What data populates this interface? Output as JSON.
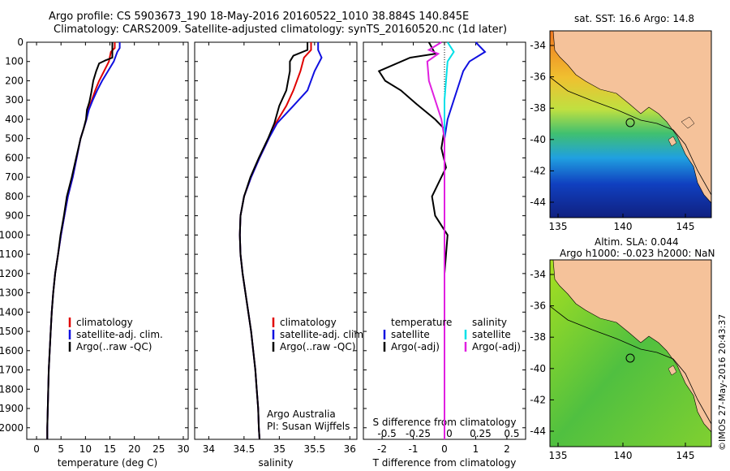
{
  "figure": {
    "title_line1": "Argo profile: CS 5903673_190 18-May-2016 20160522_1010 38.884S 140.845E",
    "title_line2": "Climatology: CARS2009. Satellite-adjusted climatology: synTS_20160520.nc (1d later)",
    "credit": "©IMOS 27-May-2016 20:43:37"
  },
  "colors": {
    "climatology": "#e00000",
    "satellite": "#1010e0",
    "argo": "#000000",
    "sal_satellite": "#00e0e8",
    "sal_argo": "#e020e0",
    "land": "#f5c29a"
  },
  "chart_data": [
    {
      "type": "line",
      "id": "temperature",
      "xlabel": "temperature (deg C)",
      "ylabel": "",
      "xlim": [
        -2,
        31
      ],
      "ylim": [
        0,
        2060
      ],
      "x_ticks": [
        0,
        5,
        10,
        15,
        20,
        25,
        30
      ],
      "y_ticks": [
        0,
        100,
        200,
        300,
        400,
        500,
        600,
        700,
        800,
        900,
        1000,
        1100,
        1200,
        1300,
        1400,
        1500,
        1600,
        1700,
        1800,
        1900,
        2000
      ],
      "y_reversed": true,
      "legend": [
        "climatology",
        "satellite-adj. clim.",
        "Argo(..raw -QC)"
      ],
      "series": [
        {
          "name": "climatology",
          "color": "#e00000",
          "points": [
            [
              16,
              0
            ],
            [
              16,
              30
            ],
            [
              15.2,
              50
            ],
            [
              14.8,
              100
            ],
            [
              13.8,
              150
            ],
            [
              12.8,
              200
            ],
            [
              12,
              250
            ],
            [
              11.3,
              300
            ],
            [
              10.6,
              350
            ],
            [
              10.2,
              400
            ],
            [
              9.6,
              450
            ],
            [
              9,
              500
            ],
            [
              8.2,
              600
            ],
            [
              7.4,
              700
            ],
            [
              6.4,
              800
            ],
            [
              5.7,
              900
            ],
            [
              5,
              1000
            ],
            [
              4.4,
              1100
            ],
            [
              3.8,
              1200
            ],
            [
              3.4,
              1300
            ],
            [
              3.1,
              1400
            ],
            [
              2.9,
              1500
            ],
            [
              2.7,
              1600
            ],
            [
              2.5,
              1700
            ],
            [
              2.4,
              1800
            ],
            [
              2.3,
              1900
            ],
            [
              2.2,
              2000
            ],
            [
              2.2,
              2060
            ]
          ]
        },
        {
          "name": "satellite-adj. clim.",
          "color": "#1010e0",
          "points": [
            [
              17,
              0
            ],
            [
              17,
              30
            ],
            [
              16.5,
              50
            ],
            [
              15.8,
              100
            ],
            [
              14.6,
              150
            ],
            [
              13.4,
              200
            ],
            [
              12.4,
              250
            ],
            [
              11.5,
              300
            ],
            [
              10.7,
              350
            ],
            [
              10.2,
              400
            ],
            [
              9.6,
              450
            ],
            [
              9,
              500
            ],
            [
              8.2,
              600
            ],
            [
              7.4,
              700
            ],
            [
              6.4,
              800
            ],
            [
              5.7,
              900
            ],
            [
              5,
              1000
            ],
            [
              4.4,
              1100
            ],
            [
              3.8,
              1200
            ],
            [
              3.4,
              1300
            ],
            [
              3.1,
              1400
            ],
            [
              2.9,
              1500
            ],
            [
              2.7,
              1600
            ],
            [
              2.5,
              1700
            ],
            [
              2.4,
              1800
            ],
            [
              2.3,
              1900
            ],
            [
              2.2,
              2000
            ],
            [
              2.2,
              2060
            ]
          ]
        },
        {
          "name": "Argo(..raw -QC)",
          "color": "#000000",
          "points": [
            [
              15.5,
              0
            ],
            [
              15.5,
              80
            ],
            [
              14,
              95
            ],
            [
              12.8,
              110
            ],
            [
              12.2,
              150
            ],
            [
              11.6,
              200
            ],
            [
              11.2,
              260
            ],
            [
              10.8,
              310
            ],
            [
              10.3,
              350
            ],
            [
              10.1,
              400
            ],
            [
              9.6,
              450
            ],
            [
              9,
              500
            ],
            [
              8.1,
              600
            ],
            [
              7.2,
              700
            ],
            [
              6.2,
              800
            ],
            [
              5.6,
              900
            ],
            [
              4.9,
              1000
            ],
            [
              4.4,
              1100
            ],
            [
              3.8,
              1200
            ],
            [
              3.4,
              1300
            ],
            [
              3.1,
              1400
            ],
            [
              2.9,
              1500
            ],
            [
              2.7,
              1600
            ],
            [
              2.5,
              1700
            ],
            [
              2.4,
              1800
            ],
            [
              2.3,
              1900
            ],
            [
              2.2,
              2000
            ],
            [
              2.2,
              2060
            ]
          ]
        }
      ]
    },
    {
      "type": "line",
      "id": "salinity",
      "xlabel": "salinity",
      "ylabel": "",
      "xlim": [
        33.8,
        36.1
      ],
      "ylim": [
        0,
        2060
      ],
      "x_ticks": [
        34,
        34.5,
        35,
        35.5,
        36
      ],
      "y_reversed": true,
      "legend": [
        "climatology",
        "satellite-adj. clim.",
        "Argo(..raw -QC)"
      ],
      "annotations": [
        "Argo Australia",
        "PI: Susan Wijffels"
      ],
      "series": [
        {
          "name": "climatology",
          "color": "#e00000",
          "points": [
            [
              35.45,
              0
            ],
            [
              35.45,
              40
            ],
            [
              35.35,
              80
            ],
            [
              35.3,
              150
            ],
            [
              35.2,
              250
            ],
            [
              35.1,
              330
            ],
            [
              34.95,
              420
            ],
            [
              34.85,
              500
            ],
            [
              34.72,
              600
            ],
            [
              34.6,
              700
            ],
            [
              34.5,
              800
            ],
            [
              34.45,
              900
            ],
            [
              34.44,
              1000
            ],
            [
              34.45,
              1100
            ],
            [
              34.48,
              1200
            ],
            [
              34.52,
              1300
            ],
            [
              34.56,
              1400
            ],
            [
              34.6,
              1500
            ],
            [
              34.63,
              1600
            ],
            [
              34.66,
              1700
            ],
            [
              34.68,
              1800
            ],
            [
              34.7,
              1900
            ],
            [
              34.71,
              2000
            ],
            [
              34.72,
              2060
            ]
          ]
        },
        {
          "name": "satellite-adj. clim.",
          "color": "#1010e0",
          "points": [
            [
              35.55,
              0
            ],
            [
              35.55,
              40
            ],
            [
              35.6,
              80
            ],
            [
              35.5,
              150
            ],
            [
              35.4,
              250
            ],
            [
              35.2,
              330
            ],
            [
              34.97,
              420
            ],
            [
              34.85,
              500
            ],
            [
              34.72,
              600
            ],
            [
              34.6,
              700
            ],
            [
              34.5,
              800
            ],
            [
              34.45,
              900
            ],
            [
              34.44,
              1000
            ],
            [
              34.45,
              1100
            ],
            [
              34.48,
              1200
            ],
            [
              34.52,
              1300
            ],
            [
              34.56,
              1400
            ],
            [
              34.6,
              1500
            ],
            [
              34.63,
              1600
            ],
            [
              34.66,
              1700
            ],
            [
              34.68,
              1800
            ],
            [
              34.7,
              1900
            ],
            [
              34.71,
              2000
            ],
            [
              34.72,
              2060
            ]
          ]
        },
        {
          "name": "Argo(..raw -QC)",
          "color": "#000000",
          "points": [
            [
              35.4,
              0
            ],
            [
              35.4,
              40
            ],
            [
              35.2,
              70
            ],
            [
              35.15,
              100
            ],
            [
              35.15,
              150
            ],
            [
              35.1,
              250
            ],
            [
              35.0,
              330
            ],
            [
              34.93,
              420
            ],
            [
              34.84,
              500
            ],
            [
              34.71,
              600
            ],
            [
              34.59,
              700
            ],
            [
              34.5,
              800
            ],
            [
              34.45,
              900
            ],
            [
              34.44,
              1000
            ],
            [
              34.45,
              1100
            ],
            [
              34.48,
              1200
            ],
            [
              34.52,
              1300
            ],
            [
              34.56,
              1400
            ],
            [
              34.6,
              1500
            ],
            [
              34.63,
              1600
            ],
            [
              34.66,
              1700
            ],
            [
              34.68,
              1800
            ],
            [
              34.7,
              1900
            ],
            [
              34.71,
              2000
            ],
            [
              34.72,
              2060
            ]
          ]
        }
      ]
    },
    {
      "type": "line",
      "id": "difference",
      "xlabel": "T difference from climatology",
      "xlabel_top": "S difference from climatology",
      "ylabel": "",
      "xlim": [
        -2.6,
        2.6
      ],
      "ylim": [
        0,
        2060
      ],
      "x_ticks": [
        -2,
        -1,
        0,
        1,
        2
      ],
      "x_ticks_top": [
        "-0.5",
        "-0.25",
        "0",
        "0.25",
        "0.5"
      ],
      "y_reversed": true,
      "legend_left": [
        "temperature",
        "satellite",
        "Argo(-adj)"
      ],
      "legend_right": [
        "salinity",
        "satellite",
        "Argo(-adj)"
      ],
      "series": [
        {
          "name": "T satellite",
          "color": "#1010e0",
          "points": [
            [
              1,
              0
            ],
            [
              1.3,
              50
            ],
            [
              0.8,
              100
            ],
            [
              0.6,
              150
            ],
            [
              0.5,
              200
            ],
            [
              0.3,
              300
            ],
            [
              0.1,
              400
            ],
            [
              0,
              500
            ],
            [
              0,
              2060
            ]
          ]
        },
        {
          "name": "T Argo(-adj)",
          "color": "#000000",
          "points": [
            [
              -0.5,
              0
            ],
            [
              -0.3,
              60
            ],
            [
              -1.1,
              80
            ],
            [
              -2.1,
              150
            ],
            [
              -1.9,
              200
            ],
            [
              -1.4,
              250
            ],
            [
              -0.9,
              320
            ],
            [
              -0.3,
              400
            ],
            [
              0,
              450
            ],
            [
              -0.1,
              550
            ],
            [
              0.05,
              650
            ],
            [
              -0.4,
              800
            ],
            [
              -0.3,
              900
            ],
            [
              0.1,
              1000
            ],
            [
              0,
              1200
            ],
            [
              0,
              2060
            ]
          ]
        },
        {
          "name": "S satellite",
          "color": "#00e0e8",
          "points": [
            [
              0.1,
              0
            ],
            [
              0.3,
              50
            ],
            [
              0.1,
              100
            ],
            [
              0.05,
              200
            ],
            [
              0,
              300
            ],
            [
              0,
              2060
            ]
          ]
        },
        {
          "name": "S Argo(-adj)",
          "color": "#e020e0",
          "points": [
            [
              -0.1,
              0
            ],
            [
              -0.5,
              40
            ],
            [
              -0.2,
              60
            ],
            [
              -0.55,
              100
            ],
            [
              -0.5,
              200
            ],
            [
              -0.3,
              300
            ],
            [
              -0.1,
              400
            ],
            [
              0,
              500
            ],
            [
              0,
              2060
            ]
          ]
        }
      ]
    }
  ],
  "maps": [
    {
      "id": "sst-map",
      "title": "sat. SST: 16.6 Argo: 14.8",
      "lon_ticks": [
        "135",
        "140",
        "145"
      ],
      "lat_ticks": [
        "-34",
        "-36",
        "-38",
        "-40",
        "-42",
        "-44"
      ]
    },
    {
      "id": "sla-map",
      "title_line1": "Altim. SLA: 0.044",
      "title_line2": "Argo h1000: -0.023 h2000: NaN",
      "lon_ticks": [
        "135",
        "140",
        "145"
      ],
      "lat_ticks": [
        "-34",
        "-36",
        "-38",
        "-40",
        "-42",
        "-44"
      ]
    }
  ]
}
